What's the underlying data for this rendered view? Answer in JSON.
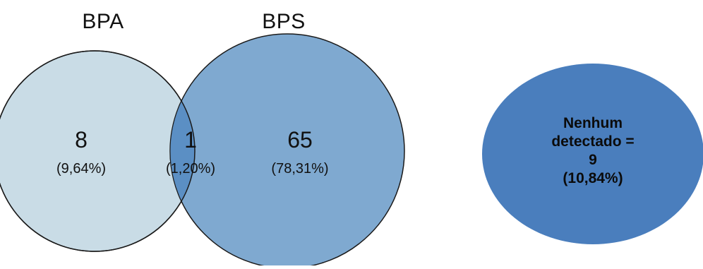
{
  "venn": {
    "set_a": {
      "label": "BPA",
      "count": "8",
      "percent": "(9,64%)"
    },
    "set_b": {
      "label": "BPS",
      "count": "65",
      "percent": "(78,31%)"
    },
    "intersection": {
      "count": "1",
      "percent": "(1,20%)"
    }
  },
  "none_detected": {
    "line1": "Nenhum",
    "line2": "detectado =",
    "line3": "9",
    "line4": "(10,84%)"
  },
  "colors": {
    "set_a_fill": "#c9dce6",
    "set_b_fill": "#7fa9d0",
    "intersection_fill": "#5b8fc4",
    "none_fill": "#4a7ebd",
    "outline": "#1a1a1a"
  }
}
